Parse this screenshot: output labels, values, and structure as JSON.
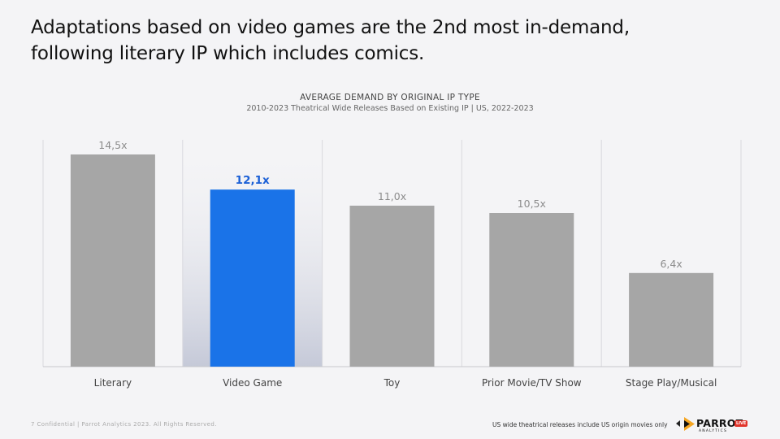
{
  "headline": {
    "line1": "Adaptations based on video games are the 2nd most in-demand,",
    "line2": "following literary IP which includes comics."
  },
  "chart_data": {
    "type": "bar",
    "title": "AVERAGE DEMAND BY ORIGINAL IP TYPE",
    "subtitle": "2010-2023 Theatrical Wide Releases Based on Existing IP | US, 2022-2023",
    "categories": [
      "Literary",
      "Video Game",
      "Toy",
      "Prior Movie/TV Show",
      "Stage Play/Musical"
    ],
    "values": [
      14.5,
      12.1,
      11.0,
      10.5,
      6.4
    ],
    "data_labels": [
      "14,5x",
      "12,1x",
      "11,0x",
      "10,5x",
      "6,4x"
    ],
    "highlight_index": 1,
    "xlabel": "",
    "ylabel": "",
    "ylim": [
      0,
      15.5
    ],
    "grid": false,
    "legend": "none",
    "colors": {
      "bar": "#a6a6a6",
      "highlight": "#1a73e8",
      "label": "#8c8c8c",
      "highlight_label": "#1a5fd6",
      "divider": "#d9d9de",
      "axis": "#c8c8cc",
      "highlight_bg_top": "#f4f4f6",
      "highlight_bg_bottom": "#c5c9d8"
    }
  },
  "footer": {
    "left": "7  Confidential  |  Parrot Analytics 2023. All Rights Reserved.",
    "note": "US wide theatrical releases include US origin movies only"
  },
  "logo": {
    "name": "PARROT",
    "sub": "ANALYTICS",
    "badge": "LIVE"
  }
}
